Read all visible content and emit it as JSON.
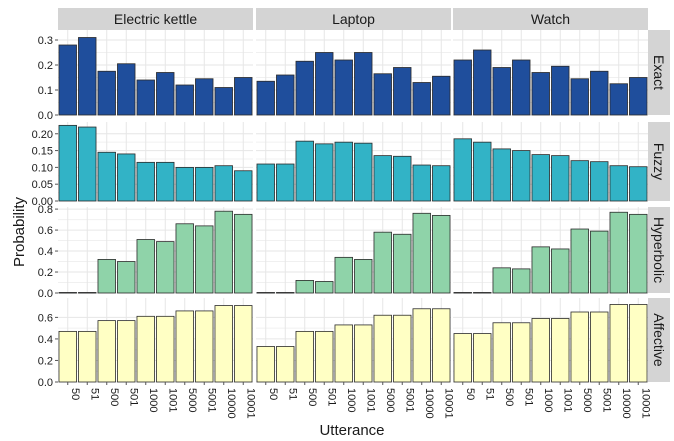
{
  "chart_data": {
    "type": "bar",
    "facet_columns": [
      "Electric kettle",
      "Laptop",
      "Watch"
    ],
    "facet_rows": [
      {
        "name": "Exact",
        "ylim": [
          0,
          0.34
        ],
        "yticks": [
          "0.0",
          "0.1",
          "0.2",
          "0.3"
        ],
        "fill": "#1f4e9c"
      },
      {
        "name": "Fuzzy",
        "ylim": [
          0,
          0.235
        ],
        "yticks": [
          "0.00",
          "0.05",
          "0.10",
          "0.15",
          "0.20"
        ],
        "fill": "#32b3c6"
      },
      {
        "name": "Hyperbolic",
        "ylim": [
          0,
          0.82
        ],
        "yticks": [
          "0.0",
          "0.2",
          "0.4",
          "0.6",
          "0.8"
        ],
        "fill": "#8fd3a9"
      },
      {
        "name": "Affective",
        "ylim": [
          0,
          0.78
        ],
        "yticks": [
          "0.0",
          "0.2",
          "0.4",
          "0.6"
        ],
        "fill": "#ffffc4"
      }
    ],
    "categories": [
      "50",
      "51",
      "500",
      "501",
      "1000",
      "1001",
      "5000",
      "5001",
      "10000",
      "10001"
    ],
    "values": {
      "Exact": {
        "Electric kettle": [
          0.28,
          0.31,
          0.175,
          0.205,
          0.14,
          0.17,
          0.12,
          0.145,
          0.11,
          0.15
        ],
        "Laptop": [
          0.135,
          0.16,
          0.215,
          0.25,
          0.22,
          0.25,
          0.165,
          0.19,
          0.13,
          0.155
        ],
        "Watch": [
          0.22,
          0.26,
          0.19,
          0.22,
          0.17,
          0.195,
          0.145,
          0.175,
          0.125,
          0.15
        ]
      },
      "Fuzzy": {
        "Electric kettle": [
          0.225,
          0.22,
          0.145,
          0.14,
          0.115,
          0.115,
          0.1,
          0.1,
          0.105,
          0.09
        ],
        "Laptop": [
          0.11,
          0.11,
          0.178,
          0.17,
          0.175,
          0.172,
          0.135,
          0.133,
          0.107,
          0.105
        ],
        "Watch": [
          0.185,
          0.175,
          0.155,
          0.15,
          0.138,
          0.135,
          0.12,
          0.117,
          0.105,
          0.102
        ]
      },
      "Hyperbolic": {
        "Electric kettle": [
          0.005,
          0.005,
          0.32,
          0.3,
          0.51,
          0.49,
          0.66,
          0.64,
          0.78,
          0.75
        ],
        "Laptop": [
          0.005,
          0.005,
          0.12,
          0.11,
          0.34,
          0.32,
          0.58,
          0.56,
          0.76,
          0.74
        ],
        "Watch": [
          0.005,
          0.005,
          0.24,
          0.23,
          0.44,
          0.42,
          0.61,
          0.59,
          0.77,
          0.75
        ]
      },
      "Affective": {
        "Electric kettle": [
          0.47,
          0.47,
          0.57,
          0.57,
          0.61,
          0.61,
          0.66,
          0.66,
          0.71,
          0.71
        ],
        "Laptop": [
          0.33,
          0.33,
          0.47,
          0.47,
          0.53,
          0.53,
          0.62,
          0.62,
          0.68,
          0.68
        ],
        "Watch": [
          0.45,
          0.45,
          0.55,
          0.55,
          0.59,
          0.59,
          0.65,
          0.65,
          0.72,
          0.72
        ]
      }
    },
    "xlabel": "Utterance",
    "ylabel": "Probability",
    "grid": true,
    "colors": {
      "panel_bg": "#ffffff",
      "grid": "#e6e6e6",
      "strip_bg": "#d4d4d4",
      "bar_outline": "#2b2b2b",
      "text": "#1a1a1a"
    }
  }
}
